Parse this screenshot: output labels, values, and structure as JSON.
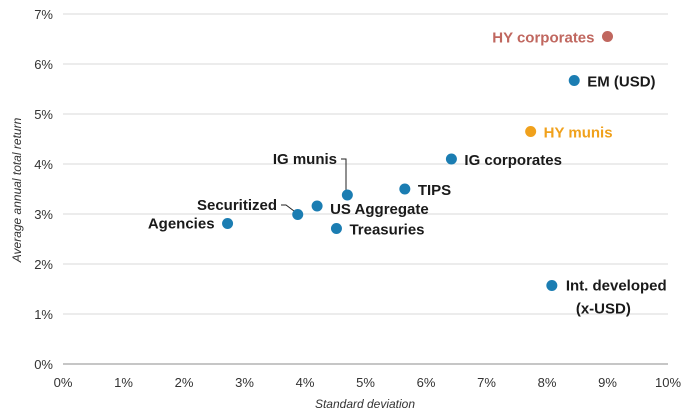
{
  "chart_data": {
    "type": "scatter",
    "title": "",
    "xlabel": "Standard deviation",
    "ylabel": "Average annual total return",
    "xlim": [
      0,
      10
    ],
    "ylim": [
      0,
      7
    ],
    "x_ticks": [
      "0%",
      "1%",
      "2%",
      "3%",
      "4%",
      "5%",
      "6%",
      "7%",
      "8%",
      "9%",
      "10%"
    ],
    "y_ticks": [
      "0%",
      "1%",
      "2%",
      "3%",
      "4%",
      "5%",
      "6%",
      "7%"
    ],
    "grid": "horizontal",
    "points": [
      {
        "label": "HY corporates",
        "x": 9.0,
        "y": 6.55,
        "color": "#c0675f"
      },
      {
        "label": "EM (USD)",
        "x": 8.45,
        "y": 5.67,
        "color": "#1b7db2"
      },
      {
        "label": "HY munis",
        "x": 7.73,
        "y": 4.65,
        "color": "#f0a11c"
      },
      {
        "label": "IG corporates",
        "x": 6.42,
        "y": 4.1,
        "color": "#1b7db2"
      },
      {
        "label": "IG munis",
        "x": 4.7,
        "y": 3.38,
        "color": "#1b7db2"
      },
      {
        "label": "TIPS",
        "x": 5.65,
        "y": 3.5,
        "color": "#1b7db2"
      },
      {
        "label": "Securitized",
        "x": 3.88,
        "y": 2.99,
        "color": "#1b7db2"
      },
      {
        "label": "US Aggregate",
        "x": 4.2,
        "y": 3.16,
        "color": "#1b7db2"
      },
      {
        "label": "Agencies",
        "x": 2.72,
        "y": 2.81,
        "color": "#1b7db2"
      },
      {
        "label": "Treasuries",
        "x": 4.52,
        "y": 2.71,
        "color": "#1b7db2"
      },
      {
        "label": "Int. developed\n(x-USD)",
        "x": 8.08,
        "y": 1.57,
        "color": "#1b7db2"
      }
    ]
  }
}
